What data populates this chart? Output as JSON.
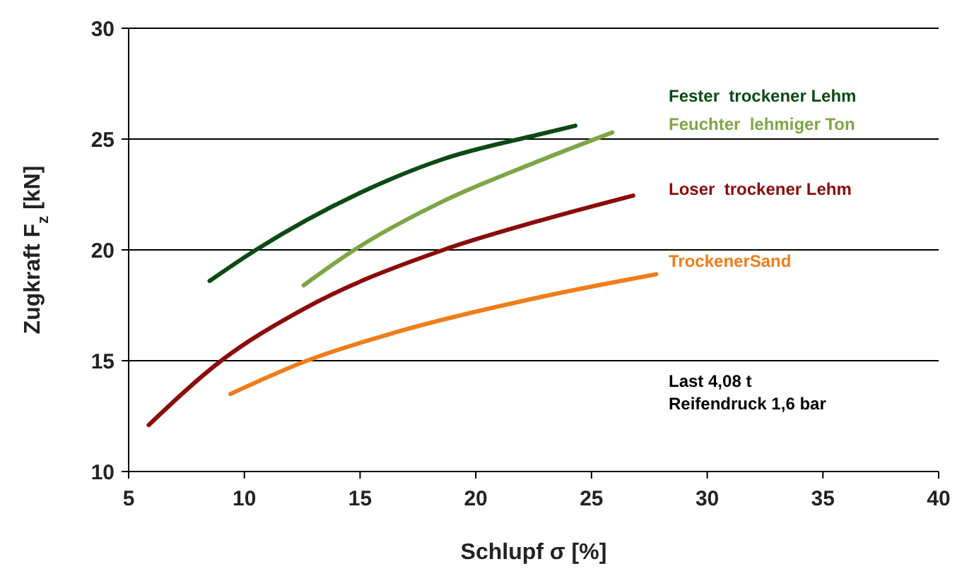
{
  "chart_data": {
    "type": "line",
    "xlabel": "Schlupf σ [%]",
    "ylabel": "Zugkraft F$_{z}$ [kN]",
    "xlim": [
      5,
      40
    ],
    "xticks": [
      5,
      10,
      15,
      20,
      25,
      30,
      35,
      40
    ],
    "ylim": [
      10,
      30
    ],
    "yticks": [
      10,
      15,
      20,
      25,
      30
    ],
    "grid": "y",
    "legend": false,
    "marker": "none",
    "line_style": "solid",
    "series": [
      {
        "name": "Fester  trockener Lehm",
        "color": "#0b4a14",
        "x": [
          8.5,
          10.5,
          14.95,
          18.6,
          22.7,
          24.3
        ],
        "values": [
          18.6,
          20,
          22.55,
          24.1,
          25.2,
          25.6
        ]
      },
      {
        "name": "Feuchter  lehmiger Ton",
        "color": "#7fa646",
        "x": [
          12.56,
          14.75,
          18.6,
          22.7,
          25.9
        ],
        "values": [
          18.4,
          20,
          22.2,
          24.0,
          25.3
        ]
      },
      {
        "name": "Loser  trockener Lehm",
        "color": "#8b0a0a",
        "x": [
          5.87,
          9.0,
          12.5,
          18.6,
          22.7,
          26.8
        ],
        "values": [
          12.1,
          15,
          17.3,
          20,
          21.3,
          22.45
        ]
      },
      {
        "name": "TrockenerSand",
        "color": "#f07d1a",
        "x": [
          9.4,
          12.7,
          16.6,
          22.7,
          27.8
        ],
        "values": [
          13.5,
          15,
          16.3,
          17.85,
          18.9
        ]
      }
    ],
    "annotations": [
      "Last 4,08 t",
      "Reifendruck 1,6 bar"
    ]
  }
}
